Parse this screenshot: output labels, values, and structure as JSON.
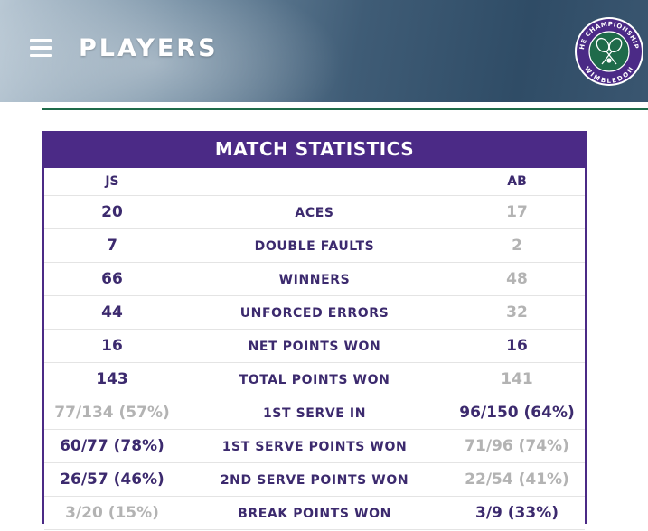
{
  "header": {
    "title": "PLAYERS",
    "menu_icon": "hamburger-menu-icon",
    "logo": {
      "top_text": "THE CHAMPIONSHIPS",
      "bottom_text": "WIMBLEDON",
      "colors": {
        "ring": "#4b2a86",
        "field": "#1f6b4a",
        "text": "#ffffff"
      }
    }
  },
  "stats": {
    "title": "MATCH STATISTICS",
    "player1": "JS",
    "player2": "AB",
    "colors": {
      "accent": "#4b2a86",
      "leading": "#3c2a6e",
      "trailing": "#b3b3b3"
    },
    "rows": [
      {
        "label": "ACES",
        "p1": "20",
        "p2": "17",
        "leader": "p1"
      },
      {
        "label": "DOUBLE FAULTS",
        "p1": "7",
        "p2": "2",
        "leader": "p1"
      },
      {
        "label": "WINNERS",
        "p1": "66",
        "p2": "48",
        "leader": "p1"
      },
      {
        "label": "UNFORCED ERRORS",
        "p1": "44",
        "p2": "32",
        "leader": "p1"
      },
      {
        "label": "NET POINTS WON",
        "p1": "16",
        "p2": "16",
        "leader": "both"
      },
      {
        "label": "TOTAL POINTS WON",
        "p1": "143",
        "p2": "141",
        "leader": "p1"
      },
      {
        "label": "1ST SERVE IN",
        "p1": "77/134 (57%)",
        "p2": "96/150 (64%)",
        "leader": "p2"
      },
      {
        "label": "1ST SERVE POINTS WON",
        "p1": "60/77 (78%)",
        "p2": "71/96 (74%)",
        "leader": "p1"
      },
      {
        "label": "2ND SERVE POINTS WON",
        "p1": "26/57 (46%)",
        "p2": "22/54 (41%)",
        "leader": "p1"
      },
      {
        "label": "BREAK POINTS WON",
        "p1": "3/20 (15%)",
        "p2": "3/9 (33%)",
        "leader": "p2"
      }
    ]
  }
}
